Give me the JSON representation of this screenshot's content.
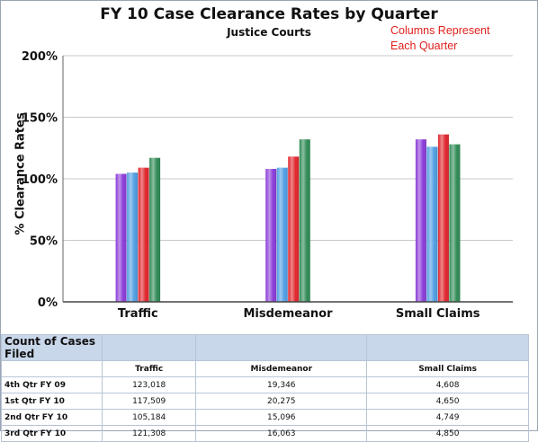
{
  "chart_data": {
    "type": "bar",
    "title": "FY 10 Case Clearance Rates by Quarter",
    "subtitle": "Justice Courts",
    "annotation": "Columns Represent Each Quarter",
    "ylabel": "% Clearance Rates",
    "xlabel": "",
    "ylim": [
      0,
      200
    ],
    "yticks": [
      "0%",
      "50%",
      "100%",
      "150%",
      "200%"
    ],
    "grid": true,
    "categories": [
      "Traffic",
      "Misdemeanor",
      "Small Claims"
    ],
    "series": [
      {
        "values": [
          104,
          108,
          132
        ],
        "color": "#8a3bd8"
      },
      {
        "values": [
          105,
          109,
          126
        ],
        "color": "#4f9de2"
      },
      {
        "values": [
          109,
          118,
          136
        ],
        "color": "#e0242b"
      },
      {
        "values": [
          117,
          132,
          128
        ],
        "color": "#2f8a55"
      }
    ]
  },
  "table": {
    "caption": "Count of Cases Filed",
    "columns": [
      "Traffic",
      "Misdemeanor",
      "Small Claims"
    ],
    "rows": [
      {
        "label": "4th Qtr FY 09",
        "values": [
          "123,018",
          "19,346",
          "4,608"
        ]
      },
      {
        "label": "1st Qtr FY 10",
        "values": [
          "117,509",
          "20,275",
          "4,650"
        ]
      },
      {
        "label": "2nd Qtr FY 10",
        "values": [
          "105,184",
          "15,096",
          "4,749"
        ]
      },
      {
        "label": "3rd Qtr FY 10",
        "values": [
          "121,308",
          "16,063",
          "4,850"
        ]
      }
    ]
  }
}
